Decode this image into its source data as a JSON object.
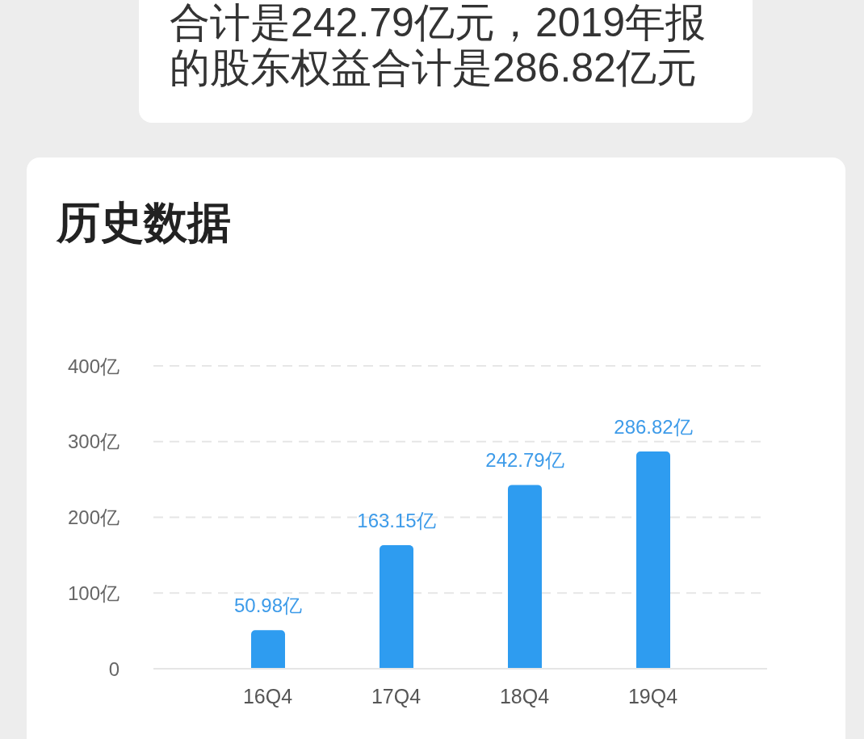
{
  "chart_data": {
    "type": "bar",
    "title": "历史数据",
    "annotations": [
      "合计是242.79亿元，2019年报的股东权益合计是286.82亿元"
    ],
    "categories": [
      "16Q4",
      "17Q4",
      "18Q4",
      "19Q4"
    ],
    "values": [
      50.98,
      163.15,
      242.79,
      286.82
    ],
    "color": "#2e9cf0",
    "value_labels": [
      "50.98亿",
      "163.15亿",
      "242.79亿",
      "286.82亿"
    ],
    "ylim": [
      0,
      400
    ],
    "yticks": [
      0,
      {
        "value": 100,
        "label": "100亿"
      },
      {
        "value": 200,
        "label": "200亿"
      },
      {
        "value": 300,
        "label": "300亿"
      },
      {
        "value": 400,
        "label": "400亿"
      }
    ],
    "grid": "y"
  }
}
